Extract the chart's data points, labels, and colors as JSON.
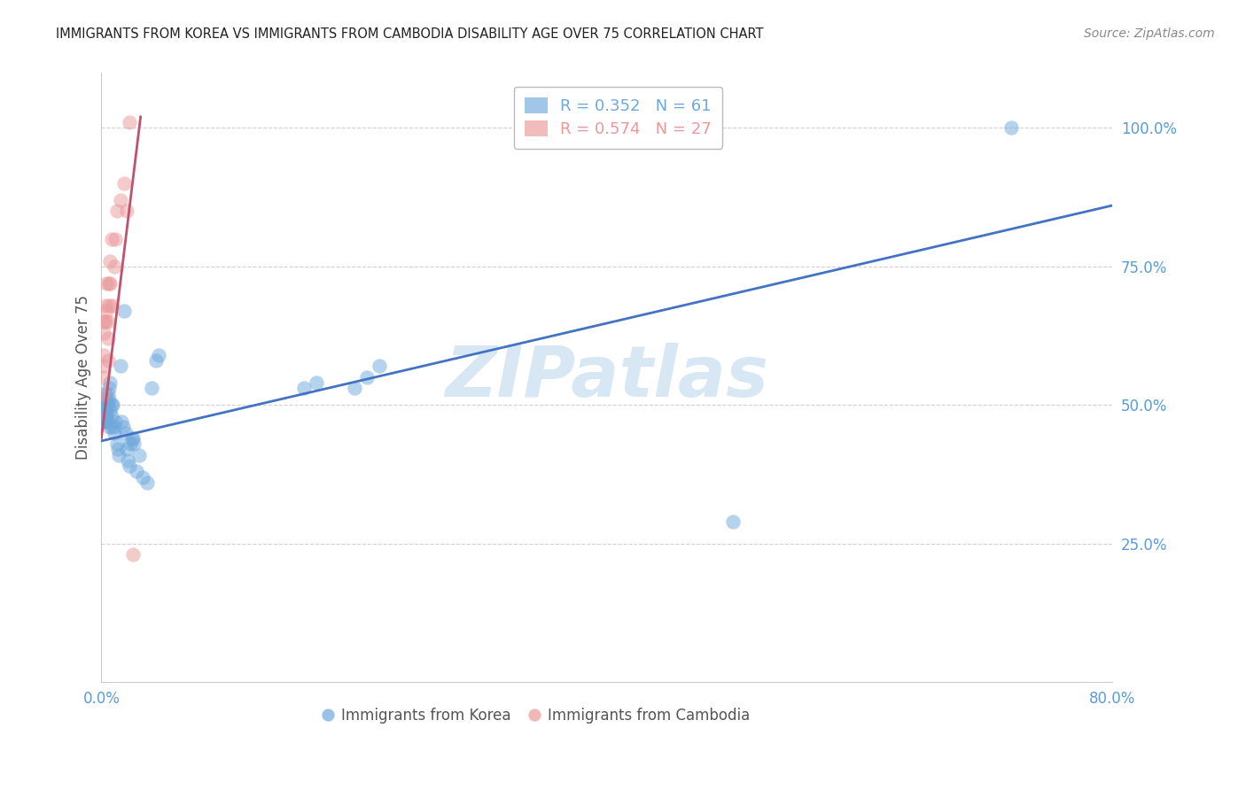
{
  "title": "IMMIGRANTS FROM KOREA VS IMMIGRANTS FROM CAMBODIA DISABILITY AGE OVER 75 CORRELATION CHART",
  "source": "Source: ZipAtlas.com",
  "ylabel": "Disability Age Over 75",
  "xlim": [
    0.0,
    0.8
  ],
  "ylim": [
    0.0,
    1.1
  ],
  "ytick_vals": [
    0.25,
    0.5,
    0.75,
    1.0
  ],
  "ytick_labels": [
    "25.0%",
    "50.0%",
    "75.0%",
    "100.0%"
  ],
  "xtick_vals": [
    0.0,
    0.1,
    0.2,
    0.3,
    0.4,
    0.5,
    0.6,
    0.7,
    0.8
  ],
  "xtick_labels": [
    "0.0%",
    "",
    "",
    "",
    "",
    "",
    "",
    "",
    "80.0%"
  ],
  "korea_color": "#6fa8dc",
  "cambodia_color": "#ea9999",
  "korea_line_color": "#4472c4",
  "cambodia_line_color": "#c0526f",
  "korea_R": 0.352,
  "korea_N": 61,
  "cambodia_R": 0.574,
  "cambodia_N": 27,
  "korea_x": [
    0.001,
    0.001,
    0.001,
    0.001,
    0.002,
    0.002,
    0.002,
    0.002,
    0.002,
    0.003,
    0.003,
    0.003,
    0.003,
    0.003,
    0.004,
    0.004,
    0.004,
    0.005,
    0.005,
    0.005,
    0.006,
    0.006,
    0.006,
    0.007,
    0.007,
    0.008,
    0.008,
    0.008,
    0.009,
    0.01,
    0.01,
    0.011,
    0.012,
    0.013,
    0.014,
    0.015,
    0.016,
    0.017,
    0.018,
    0.019,
    0.02,
    0.021,
    0.022,
    0.023,
    0.024,
    0.025,
    0.026,
    0.028,
    0.03,
    0.033,
    0.036,
    0.04,
    0.043,
    0.045,
    0.16,
    0.17,
    0.2,
    0.21,
    0.22,
    0.5,
    0.72
  ],
  "korea_y": [
    0.5,
    0.49,
    0.48,
    0.47,
    0.51,
    0.5,
    0.49,
    0.48,
    0.47,
    0.52,
    0.5,
    0.49,
    0.48,
    0.47,
    0.51,
    0.49,
    0.48,
    0.52,
    0.5,
    0.47,
    0.53,
    0.51,
    0.46,
    0.54,
    0.49,
    0.5,
    0.48,
    0.46,
    0.5,
    0.46,
    0.45,
    0.47,
    0.43,
    0.42,
    0.41,
    0.57,
    0.47,
    0.46,
    0.67,
    0.45,
    0.42,
    0.4,
    0.39,
    0.43,
    0.44,
    0.44,
    0.43,
    0.38,
    0.41,
    0.37,
    0.36,
    0.53,
    0.58,
    0.59,
    0.53,
    0.54,
    0.53,
    0.55,
    0.57,
    0.29,
    1.0
  ],
  "cambodia_x": [
    0.001,
    0.001,
    0.001,
    0.002,
    0.002,
    0.002,
    0.003,
    0.003,
    0.004,
    0.004,
    0.005,
    0.005,
    0.005,
    0.006,
    0.006,
    0.007,
    0.007,
    0.008,
    0.009,
    0.01,
    0.011,
    0.012,
    0.015,
    0.018,
    0.02,
    0.022,
    0.025
  ],
  "cambodia_y": [
    0.57,
    0.55,
    0.52,
    0.65,
    0.63,
    0.59,
    0.68,
    0.65,
    0.72,
    0.67,
    0.65,
    0.62,
    0.58,
    0.72,
    0.68,
    0.76,
    0.72,
    0.8,
    0.68,
    0.75,
    0.8,
    0.85,
    0.87,
    0.9,
    0.85,
    1.01,
    0.23
  ],
  "korea_line_x": [
    0.0,
    0.8
  ],
  "korea_line_y": [
    0.435,
    0.86
  ],
  "cambodia_line_x": [
    0.0,
    0.031
  ],
  "cambodia_line_y": [
    0.44,
    1.02
  ],
  "watermark": "ZIPatlas",
  "background_color": "#ffffff",
  "grid_color": "#d0d0d0",
  "title_color": "#222222",
  "axis_label_color": "#555555",
  "tick_color": "#5b9bd5",
  "source_color": "#888888",
  "watermark_color": "#c8ddf0"
}
